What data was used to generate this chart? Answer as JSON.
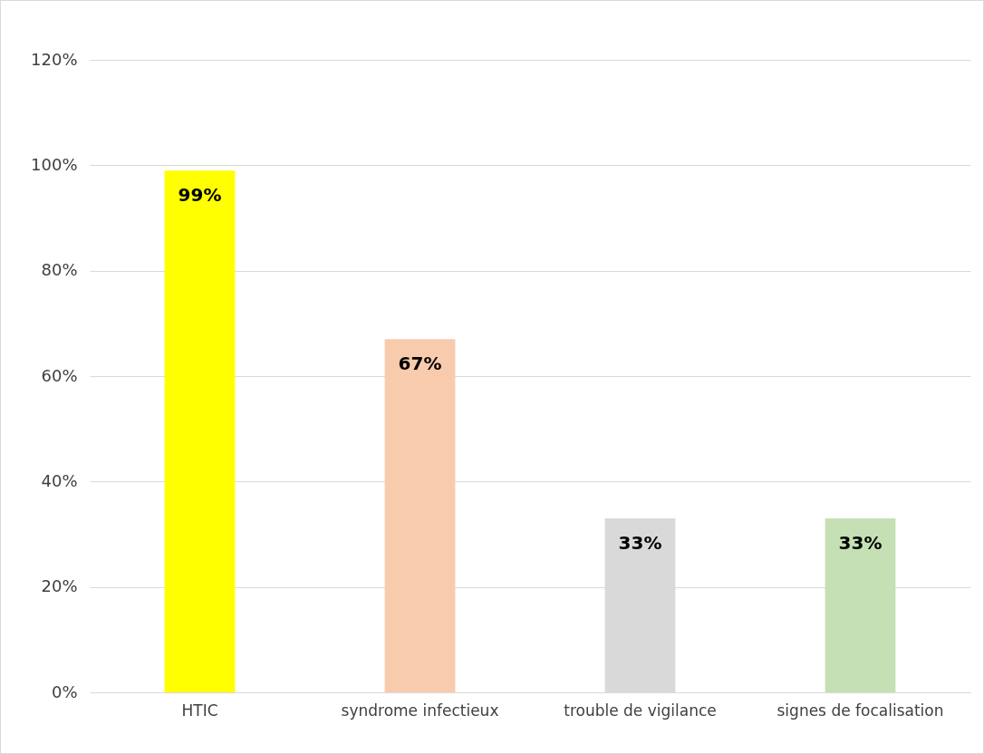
{
  "chart_data": {
    "type": "bar",
    "categories": [
      "HTIC",
      "syndrome infectieux",
      "trouble de vigilance",
      "signes de focalisation"
    ],
    "values": [
      99,
      67,
      33,
      33
    ],
    "colors": [
      "#ffff00",
      "#f8cbad",
      "#d9d9d9",
      "#c5e0b4"
    ],
    "value_labels": [
      "99%",
      "67%",
      "33%",
      "33%"
    ],
    "ylim": [
      0,
      120
    ],
    "yticks": [
      {
        "value": 0,
        "label": "0%"
      },
      {
        "value": 20,
        "label": "20%"
      },
      {
        "value": 40,
        "label": "40%"
      },
      {
        "value": 60,
        "label": "60%"
      },
      {
        "value": 80,
        "label": "80%"
      },
      {
        "value": 100,
        "label": "100%"
      },
      {
        "value": 120,
        "label": "120%"
      }
    ],
    "grid": "y"
  }
}
